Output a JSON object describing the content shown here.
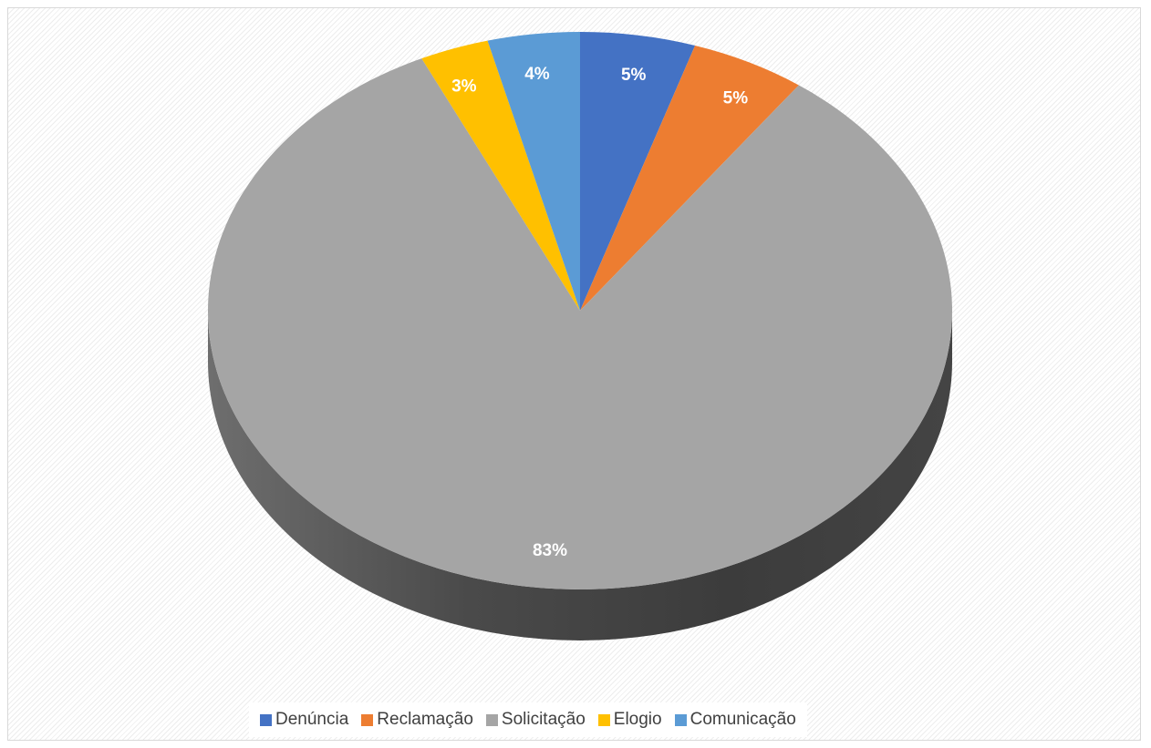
{
  "chart_data": {
    "type": "pie",
    "title": "",
    "categories": [
      "Denúncia",
      "Reclamação",
      "Solicitação",
      "Elogio",
      "Comunicação"
    ],
    "values": [
      5,
      5,
      83,
      3,
      4
    ],
    "labels": [
      "5%",
      "5%",
      "83%",
      "3%",
      "4%"
    ],
    "colors": [
      "#4472c4",
      "#ed7d31",
      "#a5a5a5",
      "#ffc000",
      "#5b9bd5"
    ],
    "style": "3d",
    "legend_position": "bottom"
  },
  "legend": {
    "items": [
      {
        "label": "Denúncia",
        "color": "#4472c4"
      },
      {
        "label": "Reclamação",
        "color": "#ed7d31"
      },
      {
        "label": "Solicitação",
        "color": "#a5a5a5"
      },
      {
        "label": "Elogio",
        "color": "#ffc000"
      },
      {
        "label": "Comunicação",
        "color": "#5b9bd5"
      }
    ]
  }
}
